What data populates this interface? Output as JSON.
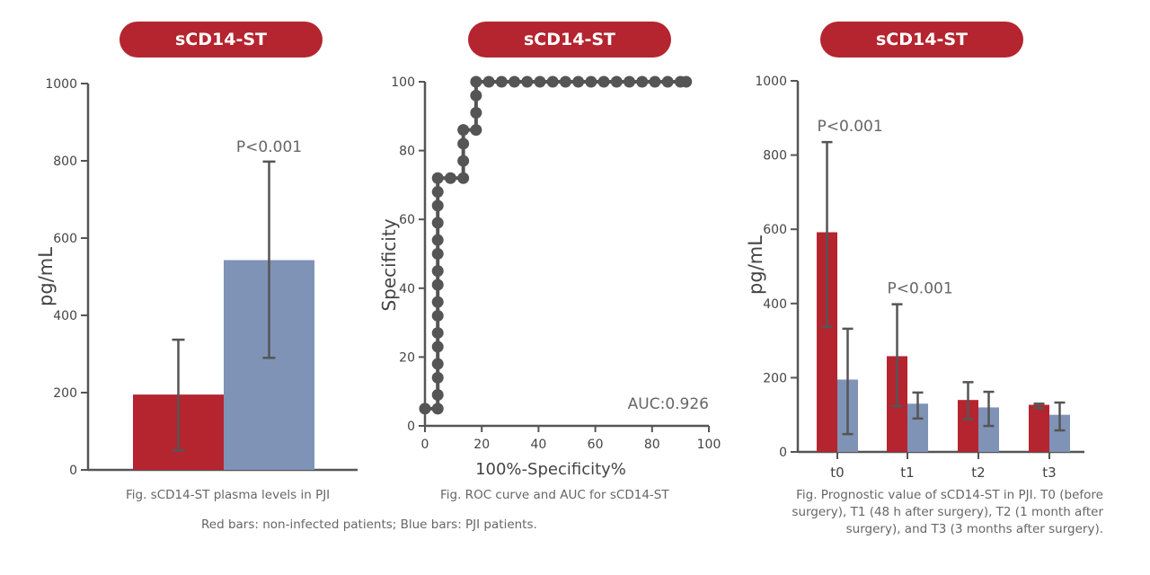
{
  "header": {
    "pills": [
      "sCD14-ST",
      "sCD14-ST",
      "sCD14-ST"
    ]
  },
  "colors": {
    "non_infected": "#b5252f",
    "pji": "#7f93b7",
    "axis": "#555555",
    "marker": "#555555",
    "pill": "#b5252f"
  },
  "captions": {
    "chart1": "Fig. sCD14-ST plasma levels in PJI",
    "chart2": "Fig. ROC curve and AUC for sCD14-ST",
    "chart3_lines": [
      "Fig. Prognostic value of sCD14-ST in PJI. T0 (before",
      "surgery), T1 (48 h after surgery), T2 (1 month after",
      "surgery), and T3 (3 months after surgery)."
    ],
    "legend": "Red bars: non-infected patients; Blue bars: PJI patients."
  },
  "chart_data": [
    {
      "type": "bar",
      "title": "sCD14-ST",
      "ylabel": "pg/mL",
      "xlabel": "",
      "ylim": [
        0,
        1000
      ],
      "yticks": [
        0,
        200,
        400,
        600,
        800,
        1000
      ],
      "categories": [
        "Non-infected",
        "PJI"
      ],
      "values": [
        195,
        543
      ],
      "errors_low": [
        50,
        290
      ],
      "errors_high": [
        337,
        798
      ],
      "annotations": [
        {
          "text": "P<0.001",
          "category": "PJI"
        }
      ]
    },
    {
      "type": "scatter",
      "title": "sCD14-ST",
      "xlabel": "100%-Specificity%",
      "ylabel": "Specificity",
      "xlim": [
        0,
        100
      ],
      "ylim": [
        0,
        100
      ],
      "xticks": [
        0,
        20,
        40,
        60,
        80,
        100
      ],
      "yticks": [
        0,
        20,
        40,
        60,
        80,
        100
      ],
      "annotation": "AUC:0.926",
      "points": [
        [
          0,
          5
        ],
        [
          4.5,
          5
        ],
        [
          4.5,
          9
        ],
        [
          4.5,
          14
        ],
        [
          4.5,
          18
        ],
        [
          4.5,
          23
        ],
        [
          4.5,
          27
        ],
        [
          4.5,
          32
        ],
        [
          4.5,
          36
        ],
        [
          4.5,
          41
        ],
        [
          4.5,
          45
        ],
        [
          4.5,
          50
        ],
        [
          4.5,
          54
        ],
        [
          4.5,
          59
        ],
        [
          4.5,
          64
        ],
        [
          4.5,
          68
        ],
        [
          4.5,
          72
        ],
        [
          9,
          72
        ],
        [
          13.5,
          72
        ],
        [
          13.5,
          77
        ],
        [
          13.5,
          82
        ],
        [
          13.5,
          86
        ],
        [
          18,
          86
        ],
        [
          18,
          91
        ],
        [
          18,
          96
        ],
        [
          18,
          100
        ],
        [
          22.5,
          100
        ],
        [
          27,
          100
        ],
        [
          31.5,
          100
        ],
        [
          36,
          100
        ],
        [
          40.5,
          100
        ],
        [
          45,
          100
        ],
        [
          49.5,
          100
        ],
        [
          54,
          100
        ],
        [
          58.5,
          100
        ],
        [
          63,
          100
        ],
        [
          67.5,
          100
        ],
        [
          72,
          100
        ],
        [
          76.5,
          100
        ],
        [
          81,
          100
        ],
        [
          85.5,
          100
        ],
        [
          90,
          100
        ],
        [
          92,
          100
        ]
      ]
    },
    {
      "type": "bar",
      "title": "sCD14-ST",
      "ylabel": "pg/mL",
      "xlabel": "",
      "ylim": [
        0,
        1000
      ],
      "yticks": [
        0,
        200,
        400,
        600,
        800,
        1000
      ],
      "categories": [
        "t0",
        "t1",
        "t2",
        "t3"
      ],
      "series": [
        {
          "name": "Non-infected",
          "values": [
            592,
            258,
            140,
            127
          ],
          "errors_low": [
            337,
            123,
            88,
            118
          ],
          "errors_high": [
            835,
            398,
            188,
            130
          ]
        },
        {
          "name": "PJI",
          "values": [
            195,
            130,
            120,
            100
          ],
          "errors_low": [
            48,
            90,
            70,
            58
          ],
          "errors_high": [
            332,
            160,
            162,
            133
          ]
        }
      ],
      "annotations": [
        {
          "text": "P<0.001",
          "category": "t0"
        },
        {
          "text": "P<0.001",
          "category": "t1"
        }
      ]
    }
  ]
}
